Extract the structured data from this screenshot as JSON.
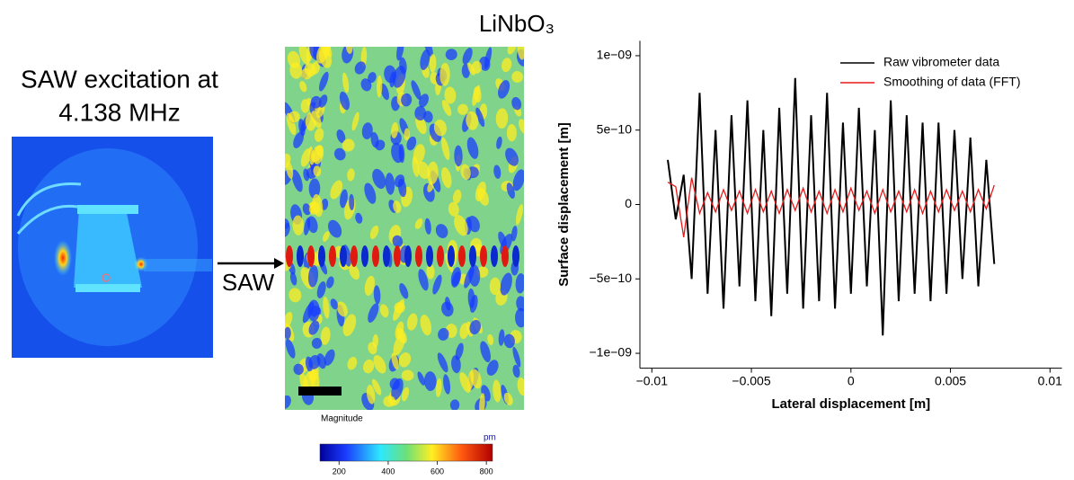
{
  "labels": {
    "excitation_line1": "SAW excitation at",
    "excitation_line2": "4.138 MHz",
    "arrow": "SAW",
    "material": "LiNbO₃"
  },
  "colorbar": {
    "label": "Magnitude",
    "unit": "pm",
    "ticks": [
      200,
      400,
      600,
      800
    ],
    "range": [
      122,
      825
    ]
  },
  "chart_data": {
    "type": "line",
    "xlabel": "Lateral displacement [m]",
    "ylabel": "Surface displacement [m]",
    "x": [
      -0.0092,
      -0.0088,
      -0.0084,
      -0.008,
      -0.0076,
      -0.0072,
      -0.0068,
      -0.0064,
      -0.006,
      -0.0056,
      -0.0052,
      -0.0048,
      -0.0044,
      -0.004,
      -0.0036,
      -0.0032,
      -0.0028,
      -0.0024,
      -0.002,
      -0.0016,
      -0.0012,
      -0.0008,
      -0.0004,
      0,
      0.0004,
      0.0008,
      0.0012,
      0.0016,
      0.002,
      0.0024,
      0.0028,
      0.0032,
      0.0036,
      0.004,
      0.0044,
      0.0048,
      0.0052,
      0.0056,
      0.006,
      0.0064,
      0.0068,
      0.0072
    ],
    "series": [
      {
        "name": "Raw vibrometer data",
        "color": "#000000",
        "values": [
          3e-10,
          -1e-10,
          2e-10,
          -5e-10,
          7.5e-10,
          -6e-10,
          5e-10,
          -7e-10,
          6e-10,
          -5.5e-10,
          7e-10,
          -6.5e-10,
          5e-10,
          -7.5e-10,
          6.5e-10,
          -6e-10,
          8.5e-10,
          -7e-10,
          6e-10,
          -6.5e-10,
          7.5e-10,
          -7e-10,
          5.5e-10,
          -6e-10,
          6.5e-10,
          -5.5e-10,
          5e-10,
          -8.8e-10,
          7e-10,
          -6.5e-10,
          6e-10,
          -6e-10,
          5.5e-10,
          -6.5e-10,
          5.5e-10,
          -6e-10,
          5e-10,
          -5e-10,
          4.5e-10,
          -5.5e-10,
          3e-10,
          -4e-10
        ]
      },
      {
        "name": "Smoothing of data (FFT)",
        "color": "#e8191a",
        "values": [
          1.5e-10,
          1.2e-10,
          -2.2e-10,
          1.8e-10,
          -6e-11,
          8e-11,
          -5e-11,
          1e-10,
          -4e-11,
          9e-11,
          -6e-11,
          1e-10,
          -5e-11,
          9e-11,
          -6e-11,
          1e-10,
          -4e-11,
          1.1e-10,
          -5e-11,
          9e-11,
          -6e-11,
          1e-10,
          -5e-11,
          1.1e-10,
          -4e-11,
          9e-11,
          -6e-11,
          1e-10,
          -5e-11,
          9e-11,
          -5e-11,
          1e-10,
          -6e-11,
          9e-11,
          -5e-11,
          1e-10,
          -4e-11,
          9e-11,
          -5e-11,
          1e-10,
          -3e-11,
          1.3e-10
        ]
      }
    ],
    "xlim": [
      -0.0106,
      0.0106
    ],
    "xticks": [
      {
        "value": -0.01,
        "label": "−0.01"
      },
      {
        "value": -0.005,
        "label": "−0.005"
      },
      0,
      0.005,
      0.01
    ],
    "ylim": [
      -1.1e-09,
      1.1e-09
    ],
    "yticks": [
      {
        "value": -1e-09,
        "label": "−1e−09"
      },
      {
        "value": -5e-10,
        "label": "−5e−10"
      },
      0,
      {
        "value": 5e-10,
        "label": "5e−10"
      },
      {
        "value": 1e-09,
        "label": "1e−09"
      }
    ],
    "legend": "upper right"
  }
}
